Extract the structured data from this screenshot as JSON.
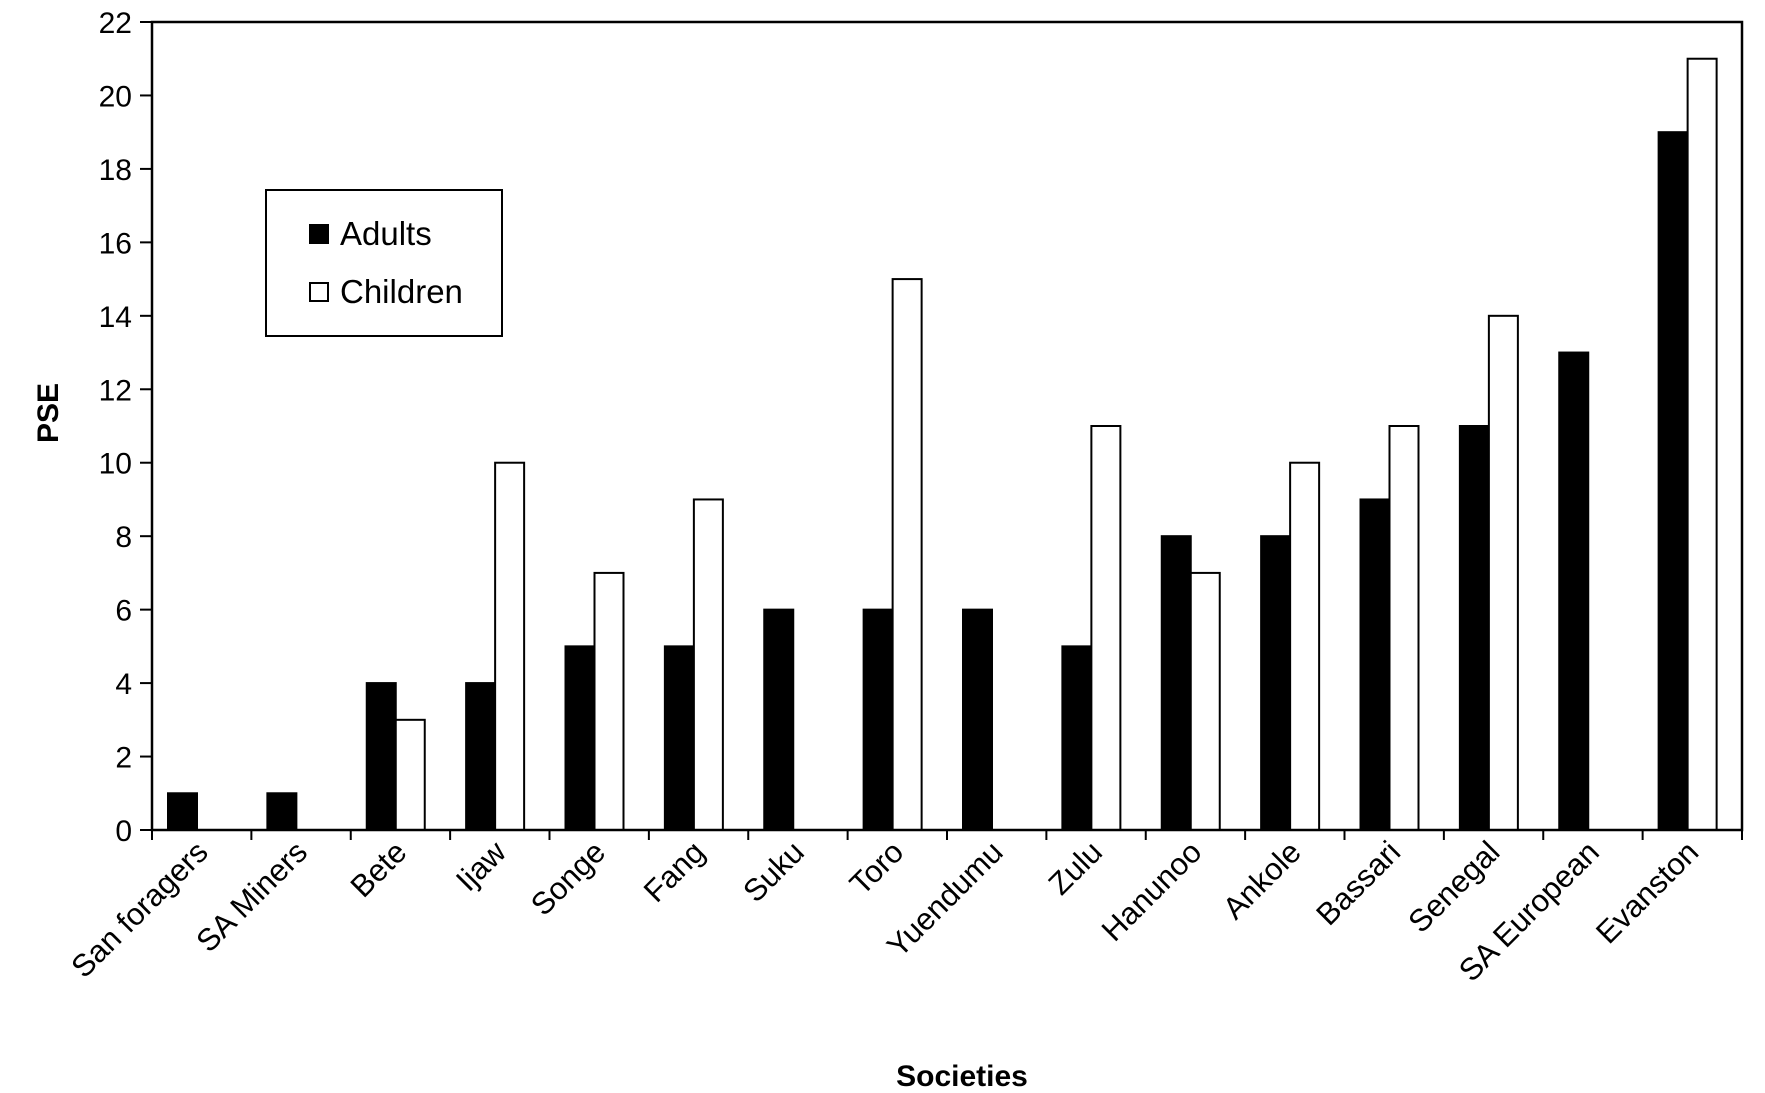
{
  "chart_data": {
    "type": "bar",
    "xlabel": "Societies",
    "ylabel": "PSE",
    "ylim": [
      0,
      22
    ],
    "yticks": [
      0,
      2,
      4,
      6,
      8,
      10,
      12,
      14,
      16,
      18,
      20,
      22
    ],
    "ytick_labels": [
      "0",
      "2",
      "4",
      "6",
      "8",
      "10",
      "12",
      "14",
      "16",
      "18",
      "20",
      "22"
    ],
    "categories": [
      "San foragers",
      "SA Miners",
      "Bete",
      "Ijaw",
      "Songe",
      "Fang",
      "Suku",
      "Toro",
      "Yuendumu",
      "Zulu",
      "Hanunoo",
      "Ankole",
      "Bassari",
      "Senegal",
      "SA European",
      "Evanston"
    ],
    "series": [
      {
        "name": "Adults",
        "color": "#000000",
        "values": [
          1,
          1,
          4,
          4,
          5,
          5,
          6,
          6,
          6,
          5,
          8,
          8,
          9,
          11,
          13,
          19
        ]
      },
      {
        "name": "Children",
        "color": "#ffffff",
        "values": [
          null,
          null,
          3,
          10,
          7,
          9,
          null,
          15,
          null,
          11,
          7,
          10,
          11,
          14,
          null,
          21
        ]
      }
    ],
    "grid": false,
    "legend_position": "top-left"
  }
}
